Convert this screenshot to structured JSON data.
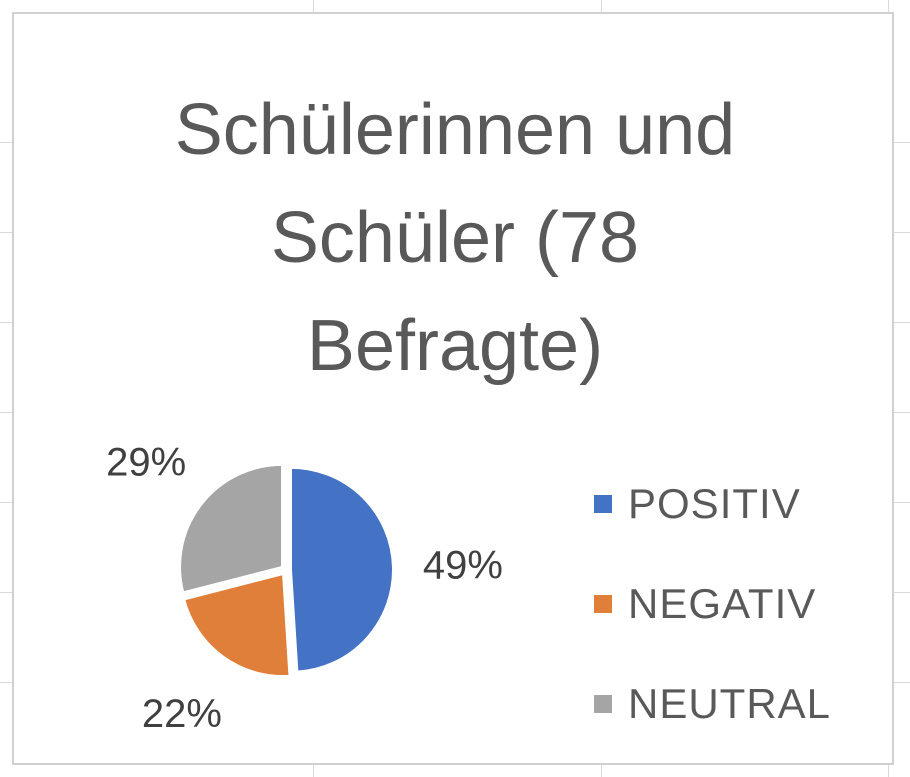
{
  "colors": {
    "positiv": "#4472C4",
    "negativ": "#E07F3A",
    "neutral": "#A5A5A5"
  },
  "chart_data": {
    "type": "pie",
    "title": "Schülerinnen und Schüler (78 Befragte)",
    "title_lines": [
      "Schülerinnen und",
      "Schüler (78",
      "Befragte)"
    ],
    "categories": [
      "POSITIV",
      "NEGATIV",
      "NEUTRAL"
    ],
    "values": [
      49,
      22,
      29
    ],
    "data_labels": [
      "49%",
      "22%",
      "29%"
    ],
    "legend_position": "right",
    "exploded": true
  }
}
